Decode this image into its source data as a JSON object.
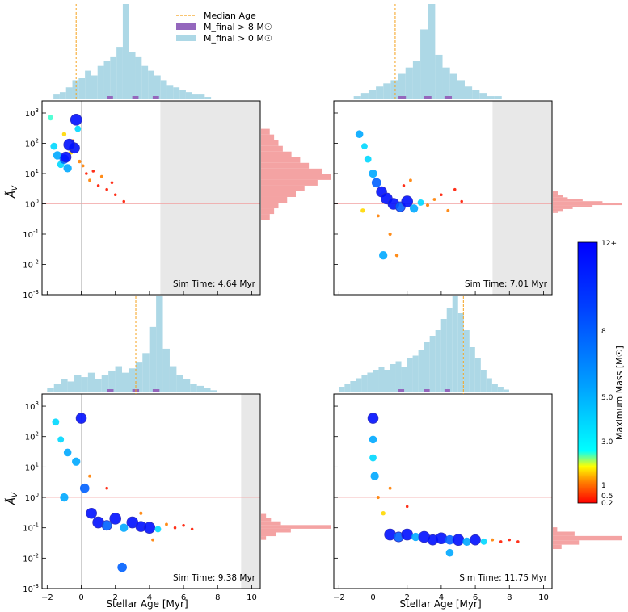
{
  "figure": {
    "legend": [
      {
        "label": "Median Age",
        "kind": "line",
        "color": "#f4a21e"
      },
      {
        "label": "M_final > 8 M☉",
        "kind": "patch",
        "color": "#9467bd"
      },
      {
        "label": "M_final > 0 M☉",
        "kind": "patch",
        "color": "#add8e6"
      }
    ],
    "colorbar": {
      "label": "Maximum Mass [M☉]",
      "ticks": [
        "12+",
        "8",
        "5.0",
        "3.0",
        "1",
        "0.5",
        "0.2"
      ]
    },
    "ylabel_main": "Ã",
    "ylabel_sub": "V",
    "xlabel": "Stellar Age [Myr]"
  },
  "chart_data": [
    {
      "type": "scatter",
      "title": "Sim Time: 4.64 Myr",
      "sim_time_myr": 4.64,
      "median_age_myr": -0.3,
      "xlim": [
        -2.3,
        10.5
      ],
      "ylim_log10": [
        -3,
        3.4
      ],
      "x_ticks": [
        -2,
        0,
        2,
        4,
        6,
        8,
        10
      ],
      "y_ticks": [
        "10^-3",
        "10^-2",
        "10^-1",
        "10^0",
        "10^1",
        "10^2",
        "10^3"
      ],
      "reference_y": 1,
      "points": [
        [
          -1.6,
          80,
          4
        ],
        [
          -1.4,
          40,
          6
        ],
        [
          -1.2,
          20,
          4
        ],
        [
          -1.0,
          30,
          8
        ],
        [
          -0.8,
          15,
          6
        ],
        [
          -0.6,
          50,
          1
        ],
        [
          -0.5,
          120,
          0.5
        ],
        [
          -0.4,
          70,
          10
        ],
        [
          -0.3,
          600,
          12
        ],
        [
          -0.2,
          300,
          3
        ],
        [
          -0.1,
          25,
          0.5
        ],
        [
          0.1,
          18,
          0.3
        ],
        [
          0.3,
          10,
          0.2
        ],
        [
          0.5,
          6,
          0.3
        ],
        [
          0.7,
          12,
          0.2
        ],
        [
          1.0,
          4,
          0.2
        ],
        [
          1.2,
          8,
          0.3
        ],
        [
          1.5,
          3,
          0.2
        ],
        [
          1.8,
          5,
          0.2
        ],
        [
          2.0,
          2,
          0.2
        ],
        [
          2.5,
          1.2,
          0.2
        ],
        [
          -1.8,
          700,
          2
        ],
        [
          -1.0,
          200,
          1
        ],
        [
          -0.7,
          90,
          12
        ],
        [
          -0.9,
          35,
          10
        ]
      ],
      "age_hist_values": [
        0,
        2,
        3,
        5,
        8,
        9,
        12,
        10,
        14,
        16,
        18,
        22,
        40,
        20,
        18,
        14,
        12,
        10,
        8,
        6,
        5,
        4,
        3,
        2,
        2,
        1,
        0
      ],
      "av_hist_values": [
        2,
        3,
        4,
        5,
        7,
        9,
        11,
        14,
        16,
        13,
        10,
        8,
        6,
        4,
        3,
        2
      ]
    },
    {
      "type": "scatter",
      "title": "Sim Time: 7.01 Myr",
      "sim_time_myr": 7.01,
      "median_age_myr": 1.3,
      "xlim": [
        -2.3,
        10.5
      ],
      "ylim_log10": [
        -3,
        3.4
      ],
      "x_ticks": [
        -2,
        0,
        2,
        4,
        6,
        8,
        10
      ],
      "y_ticks": [
        "10^-3",
        "10^-2",
        "10^-1",
        "10^0",
        "10^1",
        "10^2",
        "10^3"
      ],
      "reference_y": 1,
      "points": [
        [
          -0.8,
          200,
          5
        ],
        [
          -0.5,
          80,
          3
        ],
        [
          -0.3,
          30,
          4
        ],
        [
          0,
          10,
          6
        ],
        [
          0.2,
          5,
          8
        ],
        [
          0.5,
          2.5,
          10
        ],
        [
          0.8,
          1.5,
          12
        ],
        [
          1.2,
          1,
          12
        ],
        [
          1.6,
          0.8,
          9
        ],
        [
          2.0,
          1.2,
          12
        ],
        [
          2.4,
          0.7,
          6
        ],
        [
          2.8,
          1.1,
          3
        ],
        [
          3.2,
          0.9,
          0.4
        ],
        [
          3.6,
          1.4,
          0.3
        ],
        [
          4.0,
          2,
          0.2
        ],
        [
          4.4,
          0.6,
          0.3
        ],
        [
          4.8,
          3,
          0.2
        ],
        [
          5.2,
          1.2,
          0.2
        ],
        [
          0.6,
          0.02,
          6
        ],
        [
          1.4,
          0.02,
          0.5
        ],
        [
          -0.6,
          0.6,
          1
        ],
        [
          0.3,
          0.4,
          0.3
        ],
        [
          1.0,
          0.1,
          0.4
        ],
        [
          1.8,
          4,
          0.2
        ],
        [
          2.2,
          6,
          0.3
        ]
      ],
      "age_hist_values": [
        0,
        0,
        1,
        2,
        3,
        4,
        5,
        6,
        8,
        10,
        12,
        22,
        30,
        14,
        10,
        8,
        6,
        4,
        3,
        2,
        1,
        1,
        0
      ],
      "av_hist_values": [
        0,
        1,
        1,
        2,
        3,
        6,
        10,
        14,
        8,
        4,
        2,
        1
      ]
    },
    {
      "type": "scatter",
      "title": "Sim Time: 9.38 Myr",
      "sim_time_myr": 9.38,
      "median_age_myr": 3.2,
      "xlim": [
        -2.3,
        10.5
      ],
      "ylim_log10": [
        -3,
        3.4
      ],
      "x_ticks": [
        -2,
        0,
        2,
        4,
        6,
        8,
        10
      ],
      "y_ticks": [
        "10^-3",
        "10^-2",
        "10^-1",
        "10^0",
        "10^1",
        "10^2",
        "10^3"
      ],
      "reference_y": 1,
      "points": [
        [
          -1.5,
          300,
          4
        ],
        [
          -1.2,
          80,
          3
        ],
        [
          -0.8,
          30,
          5
        ],
        [
          -0.3,
          15,
          6
        ],
        [
          0,
          400,
          10
        ],
        [
          0.2,
          2,
          8
        ],
        [
          0.6,
          0.3,
          10
        ],
        [
          1.0,
          0.15,
          12
        ],
        [
          1.5,
          0.12,
          9
        ],
        [
          2.0,
          0.2,
          12
        ],
        [
          2.5,
          0.1,
          6
        ],
        [
          3.0,
          0.15,
          12
        ],
        [
          3.5,
          0.11,
          10
        ],
        [
          4.0,
          0.1,
          12
        ],
        [
          4.5,
          0.09,
          3
        ],
        [
          5.0,
          0.13,
          0.3
        ],
        [
          5.5,
          0.1,
          0.2
        ],
        [
          6.0,
          0.12,
          0.2
        ],
        [
          6.5,
          0.09,
          0.2
        ],
        [
          2.4,
          0.005,
          8
        ],
        [
          -1.0,
          1,
          6
        ],
        [
          0.5,
          5,
          0.3
        ],
        [
          1.5,
          2,
          0.2
        ],
        [
          3.5,
          0.3,
          0.4
        ],
        [
          4.2,
          0.04,
          0.3
        ]
      ],
      "age_hist_values": [
        2,
        4,
        6,
        5,
        8,
        7,
        9,
        6,
        8,
        10,
        12,
        9,
        11,
        14,
        18,
        30,
        44,
        20,
        12,
        8,
        6,
        4,
        3,
        2,
        1
      ],
      "av_hist_values": [
        0,
        0,
        1,
        2,
        4,
        14,
        6,
        3,
        1
      ]
    },
    {
      "type": "scatter",
      "title": "Sim Time: 11.75 Myr",
      "sim_time_myr": 11.75,
      "median_age_myr": 5.3,
      "xlim": [
        -2.3,
        10.5
      ],
      "ylim_log10": [
        -3,
        3.4
      ],
      "x_ticks": [
        -2,
        0,
        2,
        4,
        6,
        8,
        10
      ],
      "y_ticks": [
        "10^-3",
        "10^-2",
        "10^-1",
        "10^0",
        "10^1",
        "10^2",
        "10^3"
      ],
      "reference_y": 1,
      "points": [
        [
          0,
          400,
          10
        ],
        [
          0,
          80,
          5
        ],
        [
          0,
          20,
          4
        ],
        [
          0.1,
          5,
          6
        ],
        [
          0.3,
          1,
          0.4
        ],
        [
          0.6,
          0.3,
          1
        ],
        [
          1.0,
          0.06,
          12
        ],
        [
          1.5,
          0.05,
          9
        ],
        [
          2.0,
          0.06,
          12
        ],
        [
          2.5,
          0.05,
          6
        ],
        [
          3.0,
          0.05,
          12
        ],
        [
          3.5,
          0.04,
          10
        ],
        [
          4.0,
          0.045,
          12
        ],
        [
          4.5,
          0.04,
          8
        ],
        [
          5.0,
          0.04,
          12
        ],
        [
          5.5,
          0.035,
          6
        ],
        [
          6.0,
          0.04,
          10
        ],
        [
          6.5,
          0.035,
          3
        ],
        [
          7.0,
          0.04,
          0.3
        ],
        [
          7.5,
          0.035,
          0.2
        ],
        [
          8.0,
          0.04,
          0.2
        ],
        [
          8.5,
          0.035,
          0.2
        ],
        [
          1.0,
          2,
          0.3
        ],
        [
          2.0,
          0.5,
          0.2
        ],
        [
          4.5,
          0.015,
          5
        ]
      ],
      "age_hist_values": [
        2,
        3,
        4,
        5,
        6,
        7,
        8,
        9,
        8,
        10,
        11,
        9,
        12,
        13,
        15,
        18,
        20,
        22,
        26,
        30,
        34,
        28,
        22,
        16,
        12,
        8,
        5,
        3,
        2,
        1
      ],
      "av_hist_values": [
        0,
        0,
        1,
        5,
        16,
        6,
        2
      ]
    }
  ]
}
